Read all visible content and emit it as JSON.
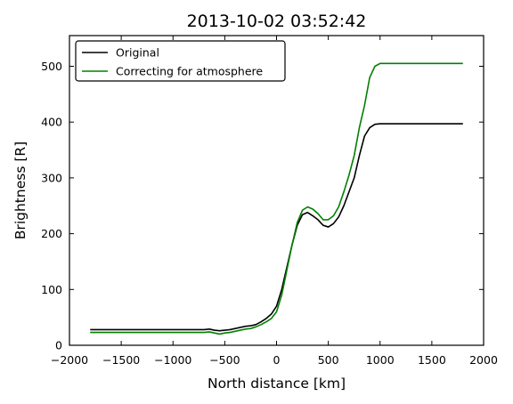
{
  "chart_data": {
    "type": "line",
    "title": "2013-10-02 03:52:42",
    "xlabel": "North distance [km]",
    "ylabel": "Brightness [R]",
    "xlim": [
      -2000,
      2000
    ],
    "ylim": [
      0,
      555
    ],
    "xticks": [
      -2000,
      -1500,
      -1000,
      -500,
      0,
      500,
      1000,
      1500,
      2000
    ],
    "xtick_labels": [
      "−2000",
      "−1500",
      "−1000",
      "−500",
      "0",
      "500",
      "1000",
      "1500",
      "2000"
    ],
    "yticks": [
      0,
      100,
      200,
      300,
      400,
      500
    ],
    "ytick_labels": [
      "0",
      "100",
      "200",
      "300",
      "400",
      "500"
    ],
    "grid": false,
    "legend_position": "top-left",
    "series": [
      {
        "name": "Original",
        "color": "#000000",
        "x": [
          -1800,
          -1500,
          -1000,
          -700,
          -650,
          -600,
          -550,
          -500,
          -450,
          -400,
          -350,
          -300,
          -250,
          -200,
          -150,
          -100,
          -50,
          0,
          50,
          100,
          150,
          200,
          250,
          300,
          350,
          400,
          450,
          500,
          550,
          600,
          650,
          700,
          750,
          800,
          850,
          900,
          950,
          1000,
          1050,
          1800
        ],
        "y": [
          28,
          28,
          28,
          28,
          29,
          27,
          26,
          27,
          28,
          30,
          32,
          34,
          35,
          37,
          42,
          48,
          56,
          70,
          100,
          140,
          180,
          215,
          234,
          238,
          232,
          225,
          215,
          212,
          218,
          230,
          250,
          275,
          300,
          340,
          375,
          390,
          396,
          397,
          397,
          397
        ]
      },
      {
        "name": "Correcting for atmosphere",
        "color": "#008000",
        "x": [
          -1800,
          -1500,
          -1000,
          -700,
          -650,
          -600,
          -550,
          -500,
          -450,
          -400,
          -350,
          -300,
          -250,
          -200,
          -150,
          -100,
          -50,
          0,
          50,
          100,
          150,
          200,
          250,
          300,
          350,
          400,
          450,
          500,
          550,
          600,
          650,
          700,
          750,
          800,
          850,
          900,
          950,
          1000,
          1050,
          1800
        ],
        "y": [
          23,
          23,
          23,
          23,
          24,
          22,
          20,
          22,
          23,
          25,
          27,
          29,
          30,
          33,
          37,
          42,
          48,
          60,
          90,
          135,
          180,
          220,
          242,
          248,
          244,
          236,
          225,
          225,
          232,
          248,
          275,
          305,
          340,
          390,
          430,
          480,
          500,
          505,
          505,
          505
        ]
      }
    ]
  }
}
